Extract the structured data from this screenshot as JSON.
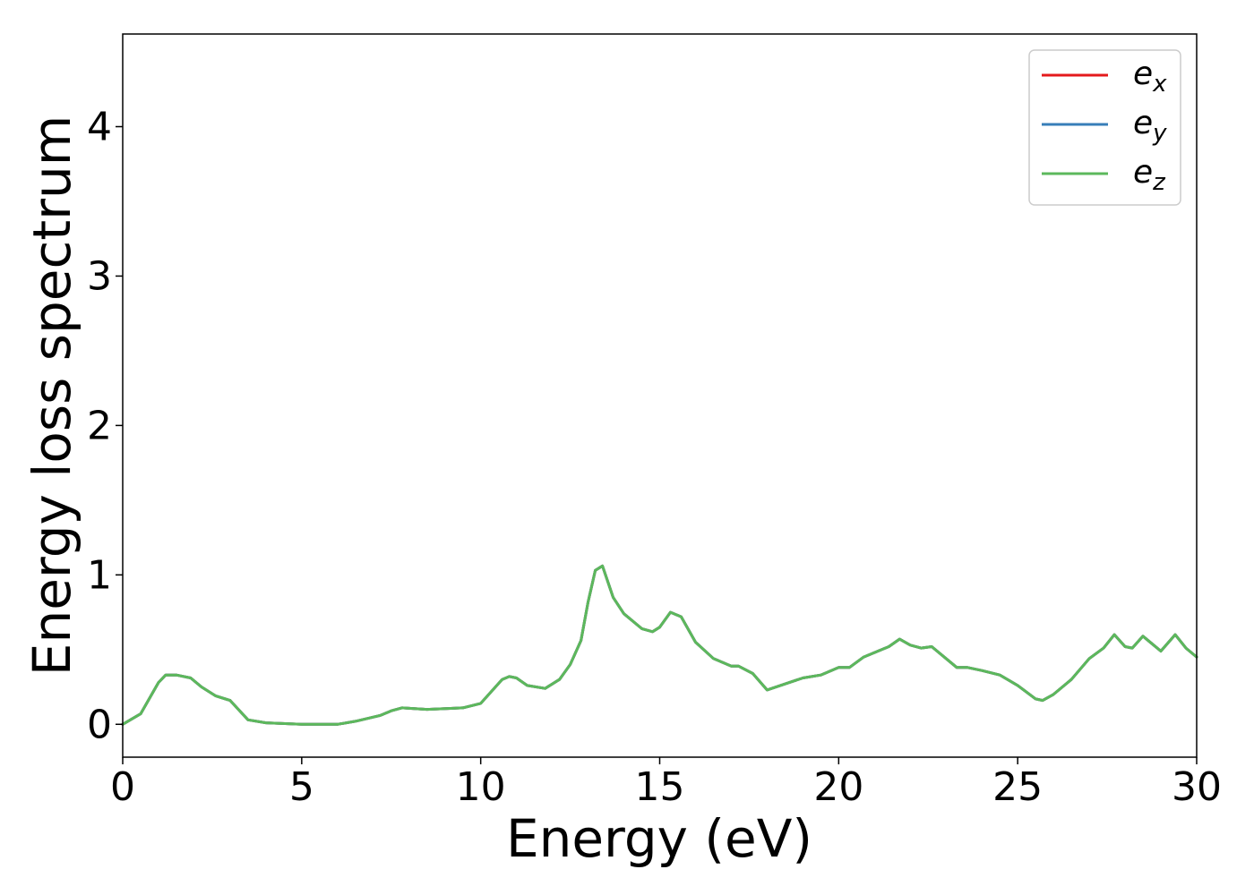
{
  "chart_data": {
    "type": "line",
    "title": "",
    "xlabel": "Energy (eV)",
    "ylabel": "Energy loss spectrum",
    "xlim": [
      0,
      30
    ],
    "ylim": [
      -0.22,
      4.62
    ],
    "xticks": [
      0,
      5,
      10,
      15,
      20,
      25,
      30
    ],
    "yticks": [
      0,
      1,
      2,
      3,
      4
    ],
    "grid": false,
    "legend_position": "top-right",
    "series": [
      {
        "name": "e_x",
        "base": "e",
        "sub": "x",
        "color": "#e41a1c",
        "x": [
          0,
          0.5,
          1.0,
          1.2,
          1.5,
          1.9,
          2.2,
          2.6,
          3.0,
          3.5,
          4.0,
          5.0,
          6.0,
          6.5,
          7.2,
          7.5,
          7.8,
          8.5,
          9.5,
          10.0,
          10.3,
          10.6,
          10.8,
          11.0,
          11.3,
          11.8,
          12.2,
          12.5,
          12.8,
          13.0,
          13.2,
          13.4,
          13.7,
          14.0,
          14.5,
          14.8,
          15.0,
          15.3,
          15.6,
          16.0,
          16.5,
          17.0,
          17.2,
          17.6,
          18.0,
          18.5,
          19.0,
          19.5,
          20.0,
          20.3,
          20.7,
          21.0,
          21.4,
          21.7,
          22.0,
          22.3,
          22.6,
          23.0,
          23.3,
          23.6,
          24.0,
          24.5,
          25.0,
          25.5,
          25.7,
          26.0,
          26.5,
          27.0,
          27.4,
          27.7,
          28.0,
          28.2,
          28.5,
          28.8,
          29.0,
          29.4,
          29.7,
          30.0
        ],
        "y": [
          0.0,
          0.07,
          0.28,
          0.33,
          0.33,
          0.31,
          0.25,
          0.19,
          0.16,
          0.03,
          0.01,
          0.0,
          0.0,
          0.02,
          0.06,
          0.09,
          0.11,
          0.1,
          0.11,
          0.14,
          0.22,
          0.3,
          0.32,
          0.31,
          0.26,
          0.24,
          0.3,
          0.4,
          0.56,
          0.82,
          1.03,
          1.06,
          0.85,
          0.74,
          0.64,
          0.62,
          0.65,
          0.75,
          0.72,
          0.55,
          0.44,
          0.39,
          0.39,
          0.34,
          0.23,
          0.27,
          0.31,
          0.33,
          0.38,
          0.38,
          0.45,
          0.48,
          0.52,
          0.57,
          0.53,
          0.51,
          0.52,
          0.44,
          0.38,
          0.38,
          0.36,
          0.33,
          0.26,
          0.17,
          0.16,
          0.2,
          0.3,
          0.44,
          0.51,
          0.6,
          0.52,
          0.51,
          0.59,
          0.53,
          0.49,
          0.6,
          0.51,
          0.45
        ]
      },
      {
        "name": "e_y",
        "base": "e",
        "sub": "y",
        "color": "#377eb8",
        "x": [
          0,
          0.5,
          1.0,
          1.2,
          1.5,
          1.9,
          2.2,
          2.6,
          3.0,
          3.5,
          4.0,
          5.0,
          6.0,
          6.5,
          7.2,
          7.5,
          7.8,
          8.5,
          9.5,
          10.0,
          10.3,
          10.6,
          10.8,
          11.0,
          11.3,
          11.8,
          12.2,
          12.5,
          12.8,
          13.0,
          13.2,
          13.4,
          13.7,
          14.0,
          14.5,
          14.8,
          15.0,
          15.3,
          15.6,
          16.0,
          16.5,
          17.0,
          17.2,
          17.6,
          18.0,
          18.5,
          19.0,
          19.5,
          20.0,
          20.3,
          20.7,
          21.0,
          21.4,
          21.7,
          22.0,
          22.3,
          22.6,
          23.0,
          23.3,
          23.6,
          24.0,
          24.5,
          25.0,
          25.5,
          25.7,
          26.0,
          26.5,
          27.0,
          27.4,
          27.7,
          28.0,
          28.2,
          28.5,
          28.8,
          29.0,
          29.4,
          29.7,
          30.0
        ],
        "y": [
          0.0,
          0.07,
          0.28,
          0.33,
          0.33,
          0.31,
          0.25,
          0.19,
          0.16,
          0.03,
          0.01,
          0.0,
          0.0,
          0.02,
          0.06,
          0.09,
          0.11,
          0.1,
          0.11,
          0.14,
          0.22,
          0.3,
          0.32,
          0.31,
          0.26,
          0.24,
          0.3,
          0.4,
          0.56,
          0.82,
          1.03,
          1.06,
          0.85,
          0.74,
          0.64,
          0.62,
          0.65,
          0.75,
          0.72,
          0.55,
          0.44,
          0.39,
          0.39,
          0.34,
          0.23,
          0.27,
          0.31,
          0.33,
          0.38,
          0.38,
          0.45,
          0.48,
          0.52,
          0.57,
          0.53,
          0.51,
          0.52,
          0.44,
          0.38,
          0.38,
          0.36,
          0.33,
          0.26,
          0.17,
          0.16,
          0.2,
          0.3,
          0.44,
          0.51,
          0.6,
          0.52,
          0.51,
          0.59,
          0.53,
          0.49,
          0.6,
          0.51,
          0.45
        ]
      },
      {
        "name": "e_z",
        "base": "e",
        "sub": "z",
        "color": "#5cb85c",
        "x": [
          0,
          0.5,
          1.0,
          1.2,
          1.5,
          1.9,
          2.2,
          2.6,
          3.0,
          3.5,
          4.0,
          5.0,
          6.0,
          6.5,
          7.2,
          7.5,
          7.8,
          8.5,
          9.5,
          10.0,
          10.3,
          10.6,
          10.8,
          11.0,
          11.3,
          11.8,
          12.2,
          12.5,
          12.8,
          13.0,
          13.2,
          13.4,
          13.7,
          14.0,
          14.5,
          14.8,
          15.0,
          15.3,
          15.6,
          16.0,
          16.5,
          17.0,
          17.2,
          17.6,
          18.0,
          18.5,
          19.0,
          19.5,
          20.0,
          20.3,
          20.7,
          21.0,
          21.4,
          21.7,
          22.0,
          22.3,
          22.6,
          23.0,
          23.3,
          23.6,
          24.0,
          24.5,
          25.0,
          25.5,
          25.7,
          26.0,
          26.5,
          27.0,
          27.4,
          27.7,
          28.0,
          28.2,
          28.5,
          28.8,
          29.0,
          29.4,
          29.7,
          30.0
        ],
        "y": [
          0.0,
          0.07,
          0.28,
          0.33,
          0.33,
          0.31,
          0.25,
          0.19,
          0.16,
          0.03,
          0.01,
          0.0,
          0.0,
          0.02,
          0.06,
          0.09,
          0.11,
          0.1,
          0.11,
          0.14,
          0.22,
          0.3,
          0.32,
          0.31,
          0.26,
          0.24,
          0.3,
          0.4,
          0.56,
          0.82,
          1.03,
          1.06,
          0.85,
          0.74,
          0.64,
          0.62,
          0.65,
          0.75,
          0.72,
          0.55,
          0.44,
          0.39,
          0.39,
          0.34,
          0.23,
          0.27,
          0.31,
          0.33,
          0.38,
          0.38,
          0.45,
          0.48,
          0.52,
          0.57,
          0.53,
          0.51,
          0.52,
          0.44,
          0.38,
          0.38,
          0.36,
          0.33,
          0.26,
          0.17,
          0.16,
          0.2,
          0.3,
          0.44,
          0.51,
          0.6,
          0.52,
          0.51,
          0.59,
          0.53,
          0.49,
          0.6,
          0.51,
          0.45
        ]
      }
    ]
  }
}
